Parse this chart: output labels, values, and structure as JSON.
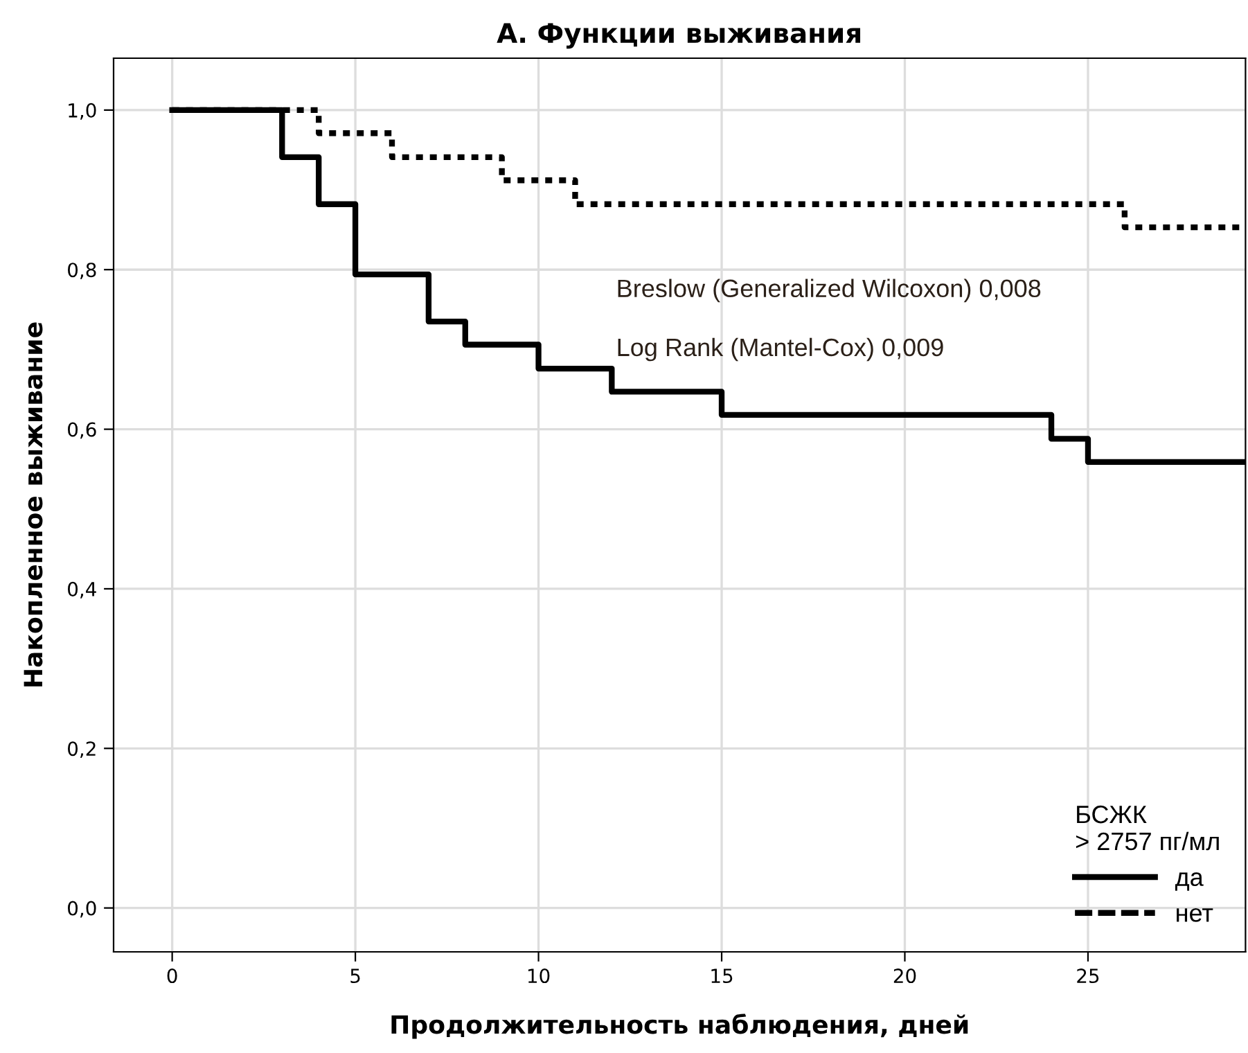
{
  "chart_data": {
    "type": "step",
    "title": "А. Функции выживания",
    "xlabel": "Продолжительность наблюдения, дней",
    "ylabel": "Накопленное выживание",
    "legend_title": "БСЖК\n> 2757 пг/мл",
    "legend": "bottom right",
    "grid": true,
    "marker": "none",
    "xlim": [
      -1.6,
      29.3
    ],
    "ylim": [
      -0.055,
      1.065
    ],
    "xticks": [
      0,
      5,
      10,
      15,
      20,
      25
    ],
    "yticks": [
      {
        "value": 0.0,
        "label": "0,0"
      },
      {
        "value": 0.2,
        "label": "0,2"
      },
      {
        "value": 0.4,
        "label": "0,4"
      },
      {
        "value": 0.6,
        "label": "0,6"
      },
      {
        "value": 0.8,
        "label": "0,8"
      },
      {
        "value": 1.0,
        "label": "1,0"
      }
    ],
    "annotations": [
      "Breslow (Generalized Wilcoxon) 0,008",
      "Log Rank (Mantel-Cox) 0,009"
    ],
    "series": [
      {
        "name": "да",
        "color": "#000000",
        "line_style": "solid",
        "x": [
          0,
          3,
          4,
          5,
          7,
          8,
          10,
          12,
          15,
          24,
          25,
          29.3
        ],
        "values": [
          1.0,
          0.941,
          0.882,
          0.794,
          0.735,
          0.706,
          0.676,
          0.647,
          0.618,
          0.588,
          0.559,
          0.559
        ]
      },
      {
        "name": "нет",
        "color": "#000000",
        "line_style": "dotted",
        "x": [
          0,
          4,
          6,
          9,
          11,
          26,
          29.3
        ],
        "values": [
          1.0,
          0.971,
          0.941,
          0.912,
          0.882,
          0.853,
          0.853
        ]
      }
    ]
  }
}
